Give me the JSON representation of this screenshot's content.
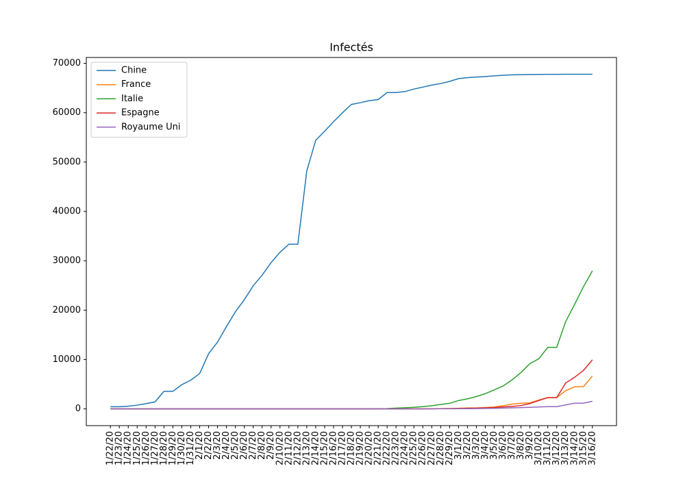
{
  "chart_data": {
    "type": "line",
    "title": "Infectés",
    "categories": [
      "1/22/20",
      "1/23/20",
      "1/24/20",
      "1/25/20",
      "1/26/20",
      "1/27/20",
      "1/28/20",
      "1/29/20",
      "1/30/20",
      "1/31/20",
      "2/1/20",
      "2/2/20",
      "2/3/20",
      "2/4/20",
      "2/5/20",
      "2/6/20",
      "2/7/20",
      "2/8/20",
      "2/9/20",
      "2/10/20",
      "2/11/20",
      "2/12/20",
      "2/13/20",
      "2/14/20",
      "2/15/20",
      "2/16/20",
      "2/17/20",
      "2/18/20",
      "2/19/20",
      "2/20/20",
      "2/21/20",
      "2/22/20",
      "2/23/20",
      "2/24/20",
      "2/25/20",
      "2/26/20",
      "2/27/20",
      "2/28/20",
      "2/29/20",
      "3/1/20",
      "3/2/20",
      "3/3/20",
      "3/4/20",
      "3/5/20",
      "3/6/20",
      "3/7/20",
      "3/8/20",
      "3/9/20",
      "3/10/20",
      "3/11/20",
      "3/12/20",
      "3/13/20",
      "3/14/20",
      "3/15/20",
      "3/16/20"
    ],
    "series": [
      {
        "name": "Chine",
        "color": "#1f77b4",
        "values": [
          444,
          444,
          549,
          761,
          1058,
          1423,
          3554,
          3554,
          4903,
          5806,
          7153,
          11177,
          13522,
          16678,
          19665,
          22112,
          24953,
          27100,
          29631,
          31728,
          33366,
          33366,
          48206,
          54406,
          56249,
          58182,
          59989,
          61682,
          62031,
          62442,
          62662,
          64084,
          64084,
          64287,
          64786,
          65187,
          65596,
          65914,
          66337,
          66907,
          67103,
          67217,
          67332,
          67466,
          67592,
          67666,
          67707,
          67743,
          67760,
          67773,
          67781,
          67786,
          67790,
          67794,
          67798
        ]
      },
      {
        "name": "France",
        "color": "#ff7f0e",
        "values": [
          0,
          0,
          2,
          3,
          3,
          3,
          4,
          5,
          5,
          5,
          6,
          6,
          6,
          6,
          6,
          6,
          6,
          11,
          11,
          11,
          11,
          11,
          11,
          11,
          12,
          12,
          12,
          12,
          12,
          12,
          12,
          12,
          12,
          12,
          14,
          18,
          38,
          57,
          100,
          130,
          191,
          204,
          288,
          380,
          656,
          957,
          1134,
          1217,
          1792,
          2289,
          2289,
          3672,
          4480,
          4513,
          6650
        ]
      },
      {
        "name": "Italie",
        "color": "#2ca02c",
        "values": [
          0,
          0,
          0,
          0,
          0,
          0,
          0,
          0,
          0,
          2,
          2,
          2,
          2,
          2,
          2,
          2,
          3,
          3,
          3,
          3,
          3,
          3,
          3,
          3,
          3,
          3,
          3,
          3,
          3,
          3,
          20,
          62,
          155,
          229,
          322,
          453,
          655,
          888,
          1128,
          1694,
          2036,
          2502,
          3089,
          3858,
          4636,
          5883,
          7375,
          9172,
          10149,
          12462,
          12462,
          17660,
          21157,
          24747,
          27980
        ]
      },
      {
        "name": "Espagne",
        "color": "#d62728",
        "values": [
          0,
          0,
          0,
          0,
          0,
          0,
          0,
          0,
          0,
          0,
          1,
          1,
          1,
          1,
          1,
          1,
          1,
          1,
          2,
          2,
          2,
          2,
          2,
          2,
          2,
          2,
          2,
          2,
          2,
          2,
          2,
          2,
          2,
          2,
          6,
          13,
          15,
          32,
          45,
          84,
          120,
          165,
          222,
          259,
          400,
          500,
          673,
          1073,
          1695,
          2277,
          2277,
          5232,
          6391,
          7798,
          9942
        ]
      },
      {
        "name": "Royaume Uni",
        "color": "#9467bd",
        "values": [
          0,
          0,
          0,
          0,
          0,
          0,
          0,
          0,
          0,
          2,
          2,
          2,
          2,
          2,
          2,
          2,
          3,
          3,
          3,
          8,
          8,
          8,
          9,
          9,
          9,
          9,
          9,
          9,
          9,
          9,
          9,
          9,
          9,
          13,
          13,
          13,
          15,
          20,
          23,
          36,
          40,
          51,
          86,
          116,
          164,
          207,
          274,
          322,
          384,
          459,
          459,
          802,
          1144,
          1145,
          1551
        ]
      }
    ],
    "ylim": [
      -3390,
      71190
    ],
    "yticks": [
      0,
      10000,
      20000,
      30000,
      40000,
      50000,
      60000,
      70000
    ],
    "grid": false,
    "legend": "upper left"
  }
}
